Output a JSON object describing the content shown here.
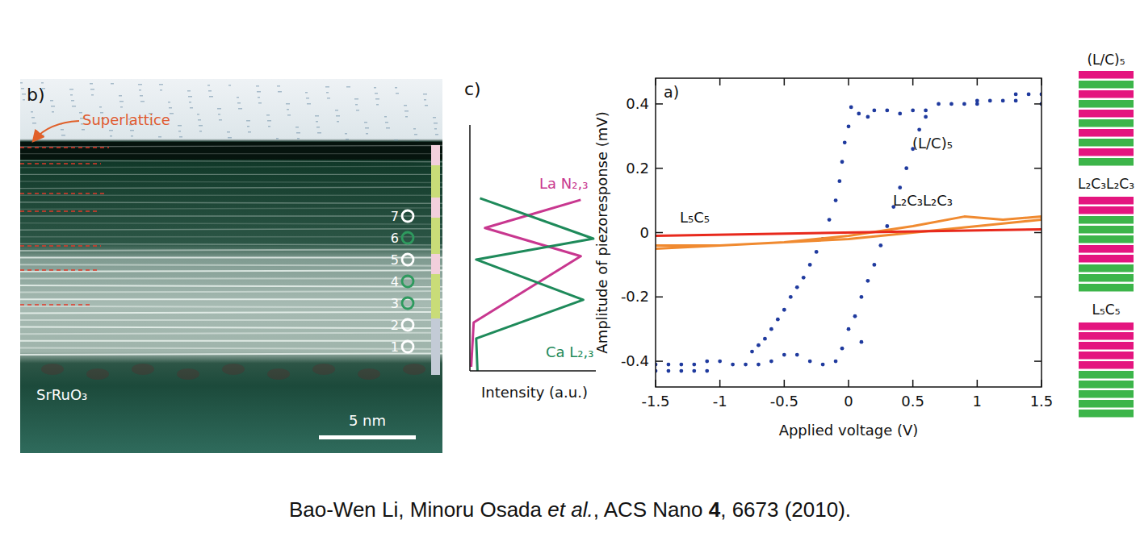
{
  "chart_data": [
    {
      "type": "line",
      "panel_label": "c)",
      "orientation": "horizontal",
      "value_label": "Intensity (a.u.)",
      "tick_labels": false,
      "xlim": [
        0,
        12.7
      ],
      "ylim": [
        0,
        1
      ],
      "series": [
        {
          "name": "La N₂,₃",
          "color": "#c8378f",
          "x": [
            0.21,
            2.5,
            5.92,
            7.38,
            8.83
          ],
          "values": [
            0.01,
            0.03,
            0.88,
            0.12,
            0.88
          ]
        },
        {
          "name": "Ca L₂,₃",
          "color": "#1e8a5a",
          "x": [
            0,
            1.67,
            3.67,
            5.75,
            6.83,
            8.92
          ],
          "values": [
            0.06,
            0.05,
            0.9,
            0.05,
            0.98,
            0.08
          ]
        }
      ]
    },
    {
      "type": "line",
      "panel_label": "a)",
      "xlabel": "Applied voltage (V)",
      "ylabel": "Amplitude of piezoresponse (mV)",
      "xlim": [
        -1.5,
        1.5
      ],
      "ylim": [
        -0.48,
        0.48
      ],
      "xticks": [
        -1.5,
        -1,
        -0.5,
        0,
        0.5,
        1,
        1.5
      ],
      "yticks": [
        -0.4,
        -0.2,
        0,
        0.2,
        0.4
      ],
      "series": [
        {
          "name": "(L/C)₅",
          "type": "scatter",
          "marker": "dot",
          "color": "#1f3a9e",
          "x": [
            -1.5,
            -1.4,
            -1.3,
            -1.2,
            -1.1,
            -1.5,
            -1.4,
            -1.3,
            -1.2,
            -1.1,
            -1.0,
            -0.9,
            -0.8,
            -0.75,
            -0.7,
            -0.65,
            -0.6,
            -0.55,
            -0.5,
            -0.45,
            -0.4,
            -0.35,
            -0.3,
            -0.25,
            -0.2,
            -0.15,
            -0.1,
            -0.07,
            -0.05,
            -0.03,
            0.0,
            0.02,
            0.08,
            0.15,
            -0.7,
            -0.6,
            -0.5,
            -0.4,
            -0.3,
            -0.2,
            -0.1,
            -0.05,
            0.0,
            0.05,
            0.1,
            0.15,
            0.2,
            0.25,
            0.3,
            0.35,
            0.4,
            0.45,
            0.5,
            0.55,
            0.6,
            0.1,
            0.2,
            0.3,
            0.4,
            0.5,
            0.6,
            0.7,
            0.8,
            0.9,
            1.0,
            1.1,
            1.2,
            1.3,
            1.4,
            1.5,
            1.0,
            1.3,
            1.5
          ],
          "values": [
            -0.43,
            -0.43,
            -0.43,
            -0.43,
            -0.43,
            -0.41,
            -0.41,
            -0.41,
            -0.41,
            -0.4,
            -0.4,
            -0.41,
            -0.41,
            -0.37,
            -0.35,
            -0.33,
            -0.3,
            -0.27,
            -0.24,
            -0.2,
            -0.17,
            -0.14,
            -0.1,
            -0.06,
            -0.02,
            0.04,
            0.1,
            0.16,
            0.22,
            0.28,
            0.33,
            0.39,
            0.37,
            0.36,
            -0.41,
            -0.4,
            -0.38,
            -0.38,
            -0.4,
            -0.41,
            -0.4,
            -0.36,
            -0.3,
            -0.26,
            -0.2,
            -0.15,
            -0.1,
            -0.04,
            0.02,
            0.08,
            0.14,
            0.2,
            0.26,
            0.32,
            0.36,
            -0.34,
            0.38,
            0.38,
            0.37,
            0.38,
            0.38,
            0.4,
            0.4,
            0.4,
            0.4,
            0.41,
            0.41,
            0.43,
            0.43,
            0.43,
            0.41,
            0.41,
            0.4
          ]
        },
        {
          "name": "L₂C₃L₂C₃",
          "type": "line",
          "line_style": "solid",
          "color": "#f08a30",
          "x": [
            -1.5,
            -1.0,
            -0.5,
            0,
            0.5,
            0.9,
            1.2,
            1.5,
            1.5,
            1.0,
            0.5,
            0,
            -0.5,
            -1.0,
            -1.5
          ],
          "values": [
            -0.05,
            -0.04,
            -0.03,
            -0.01,
            0.02,
            0.05,
            0.04,
            0.05,
            0.04,
            0.02,
            0.0,
            -0.02,
            -0.03,
            -0.04,
            -0.04
          ]
        },
        {
          "name": "L₅C₅",
          "type": "line",
          "line_style": "solid",
          "color": "#e8291c",
          "x": [
            -1.5,
            1.5
          ],
          "values": [
            -0.01,
            0.01
          ]
        }
      ]
    }
  ],
  "tem_panel": {
    "panel_label": "b)",
    "annotation": "Superlattice",
    "substrate": "SrRuO₃",
    "scale_bar": "5 nm",
    "markers": {
      "labels": [
        "1",
        "2",
        "3",
        "4",
        "5",
        "6",
        "7"
      ],
      "colors": [
        "#ffffff",
        "#ffffff",
        "#2e9a5e",
        "#2e9a5e",
        "#ffffff",
        "#2e9a5e",
        "#ffffff"
      ]
    },
    "layer_bar": {
      "colors": [
        "#f2cfdc",
        "#c9dc78",
        "#f2cfdc",
        "#c9dc78",
        "#f2cfdc",
        "#c9dc78",
        "#c3cbd6"
      ]
    }
  },
  "schematics": [
    {
      "label": "(L/C)₅",
      "colors": [
        "#e4157f",
        "#3cb54a",
        "#e4157f",
        "#3cb54a",
        "#e4157f",
        "#3cb54a",
        "#e4157f",
        "#3cb54a",
        "#e4157f",
        "#3cb54a"
      ]
    },
    {
      "label": "L₂C₃L₂C₃",
      "colors": [
        "#e4157f",
        "#e4157f",
        "#3cb54a",
        "#3cb54a",
        "#3cb54a",
        "#e4157f",
        "#e4157f",
        "#3cb54a",
        "#3cb54a",
        "#3cb54a"
      ]
    },
    {
      "label": "L₅C₅",
      "colors": [
        "#e4157f",
        "#e4157f",
        "#e4157f",
        "#e4157f",
        "#e4157f",
        "#3cb54a",
        "#3cb54a",
        "#3cb54a",
        "#3cb54a",
        "#3cb54a"
      ]
    }
  ],
  "citation": {
    "authors": "Bao-Wen Li, Minoru Osada ",
    "et_al": "et al.",
    "journal": ", ACS Nano ",
    "volume": "4",
    "pages": ", 6673 (2010)."
  }
}
